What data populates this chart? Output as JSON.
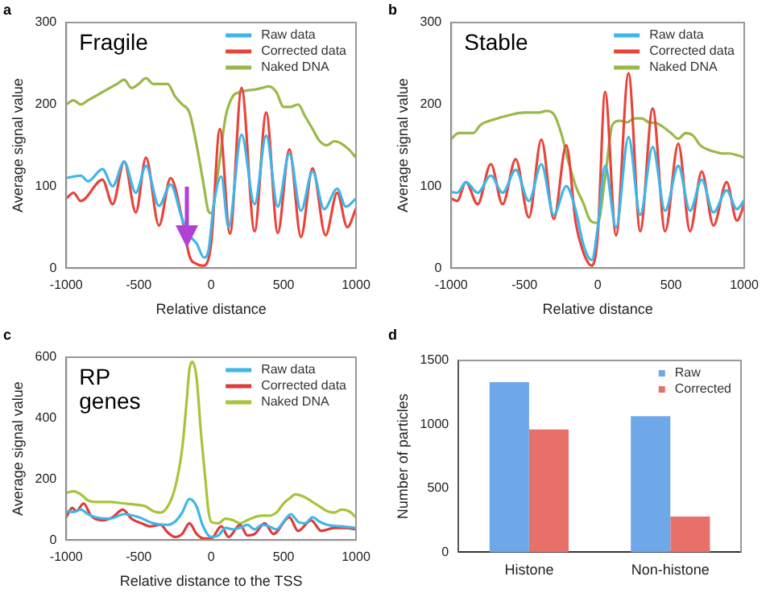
{
  "chart_data": [
    {
      "type": "line",
      "title": "Fragile",
      "xlabel": "Relative distance",
      "ylabel": "Average signal value",
      "annotations": [
        "a"
      ],
      "xlim": [
        -1000,
        1000
      ],
      "xticks": [
        -1000,
        -500,
        0,
        500,
        1000
      ],
      "ylim": [
        0,
        300
      ],
      "yticks": [
        0,
        100,
        200,
        300
      ],
      "grid": false,
      "legend": "top right",
      "marker": "none",
      "line_style": "solid",
      "series": [
        {
          "name": "Raw data",
          "color": "#3fb6e8",
          "x": [
            -1000,
            -900,
            -850,
            -750,
            -680,
            -600,
            -520,
            -450,
            -360,
            -280,
            -200,
            -150,
            -100,
            -50,
            -20,
            20,
            70,
            120,
            210,
            300,
            380,
            460,
            540,
            620,
            700,
            780,
            870,
            930,
            1000
          ],
          "values": [
            110,
            113,
            106,
            121,
            100,
            130,
            92,
            125,
            76,
            102,
            60,
            40,
            30,
            13,
            20,
            80,
            112,
            50,
            163,
            78,
            162,
            75,
            140,
            70,
            118,
            72,
            97,
            75,
            85
          ]
        },
        {
          "name": "Corrected data",
          "color": "#e8443a",
          "x": [
            -1000,
            -950,
            -900,
            -750,
            -680,
            -600,
            -520,
            -450,
            -360,
            -280,
            -200,
            -150,
            -100,
            -50,
            0,
            60,
            130,
            210,
            300,
            380,
            460,
            540,
            620,
            700,
            790,
            870,
            940,
            1000
          ],
          "values": [
            85,
            92,
            82,
            108,
            78,
            130,
            68,
            135,
            52,
            110,
            60,
            15,
            5,
            3,
            30,
            170,
            42,
            220,
            45,
            190,
            43,
            145,
            38,
            122,
            40,
            92,
            50,
            73
          ]
        },
        {
          "name": "Naked DNA",
          "color": "#9bb84a",
          "x": [
            -1000,
            -950,
            -900,
            -850,
            -800,
            -750,
            -700,
            -650,
            -600,
            -550,
            -500,
            -450,
            -400,
            -350,
            -300,
            -250,
            -200,
            -150,
            -100,
            -50,
            -20,
            0,
            50,
            100,
            150,
            200,
            250,
            300,
            350,
            400,
            450,
            500,
            550,
            600,
            650,
            700,
            750,
            800,
            850,
            900,
            950,
            1000
          ],
          "values": [
            200,
            205,
            200,
            205,
            210,
            215,
            220,
            225,
            230,
            220,
            225,
            232,
            225,
            225,
            225,
            210,
            200,
            190,
            150,
            100,
            70,
            67,
            120,
            185,
            210,
            215,
            217,
            218,
            220,
            222,
            215,
            197,
            197,
            200,
            185,
            170,
            155,
            150,
            155,
            152,
            145,
            135
          ]
        }
      ]
    },
    {
      "type": "line",
      "title": "Stable",
      "xlabel": "Relative distance",
      "ylabel": "Average signal value",
      "annotations": [
        "b"
      ],
      "xlim": [
        -1000,
        1000
      ],
      "xticks": [
        -1000,
        -500,
        0,
        500,
        1000
      ],
      "ylim": [
        0,
        300
      ],
      "yticks": [
        0,
        100,
        200,
        300
      ],
      "grid": false,
      "legend": "top right",
      "marker": "none",
      "line_style": "solid",
      "series": [
        {
          "name": "Raw data",
          "color": "#3fb6e8",
          "x": [
            -1000,
            -960,
            -900,
            -820,
            -730,
            -650,
            -560,
            -470,
            -385,
            -300,
            -215,
            -150,
            -100,
            -60,
            -40,
            0,
            50,
            125,
            210,
            290,
            375,
            460,
            550,
            630,
            710,
            790,
            880,
            950,
            1000
          ],
          "values": [
            93,
            92,
            105,
            92,
            113,
            92,
            120,
            82,
            127,
            65,
            100,
            70,
            30,
            12,
            10,
            50,
            125,
            50,
            160,
            65,
            148,
            70,
            125,
            70,
            108,
            68,
            95,
            72,
            83
          ]
        },
        {
          "name": "Corrected data",
          "color": "#e8443a",
          "x": [
            -1000,
            -960,
            -900,
            -820,
            -730,
            -650,
            -560,
            -470,
            -385,
            -300,
            -215,
            -150,
            -100,
            -60,
            -40,
            0,
            50,
            125,
            210,
            290,
            375,
            460,
            550,
            630,
            710,
            790,
            880,
            950,
            1000
          ],
          "values": [
            85,
            82,
            105,
            78,
            127,
            78,
            133,
            62,
            157,
            60,
            150,
            55,
            20,
            5,
            3,
            40,
            215,
            40,
            238,
            45,
            195,
            45,
            152,
            45,
            118,
            52,
            105,
            58,
            78
          ]
        },
        {
          "name": "Naked DNA",
          "color": "#9bb84a",
          "x": [
            -1000,
            -950,
            -850,
            -800,
            -700,
            -600,
            -500,
            -400,
            -350,
            -300,
            -250,
            -200,
            -150,
            -100,
            -50,
            0,
            50,
            100,
            150,
            200,
            250,
            300,
            350,
            400,
            450,
            500,
            550,
            600,
            650,
            700,
            750,
            800,
            850,
            900,
            950,
            1000
          ],
          "values": [
            158,
            165,
            165,
            175,
            182,
            187,
            190,
            190,
            192,
            188,
            165,
            130,
            100,
            80,
            58,
            55,
            110,
            175,
            180,
            178,
            183,
            183,
            178,
            177,
            172,
            165,
            158,
            165,
            162,
            150,
            145,
            142,
            140,
            140,
            138,
            135
          ]
        }
      ]
    },
    {
      "type": "line",
      "title": "RP genes",
      "xlabel": "Relative distance to the TSS",
      "ylabel": "Average signal value",
      "annotations": [
        "c"
      ],
      "xlim": [
        -1000,
        1000
      ],
      "xticks": [
        -1000,
        -500,
        0,
        500,
        1000
      ],
      "ylim": [
        0,
        600
      ],
      "yticks": [
        0,
        200,
        400,
        600
      ],
      "grid": false,
      "legend": "top right",
      "marker": "none",
      "line_style": "solid",
      "series": [
        {
          "name": "Raw data",
          "color": "#3fb6e8",
          "x": [
            -1000,
            -950,
            -900,
            -850,
            -800,
            -700,
            -600,
            -500,
            -400,
            -300,
            -250,
            -200,
            -150,
            -100,
            -60,
            0,
            50,
            100,
            150,
            200,
            250,
            300,
            350,
            400,
            450,
            500,
            550,
            600,
            650,
            700,
            750,
            800,
            900,
            1000
          ],
          "values": [
            95,
            92,
            100,
            85,
            75,
            70,
            85,
            75,
            55,
            50,
            60,
            90,
            135,
            110,
            50,
            10,
            15,
            40,
            35,
            40,
            50,
            35,
            50,
            45,
            35,
            60,
            85,
            60,
            55,
            75,
            60,
            50,
            45,
            40
          ]
        },
        {
          "name": "Corrected data",
          "color": "#e03a3a",
          "x": [
            -1000,
            -960,
            -930,
            -880,
            -830,
            -750,
            -680,
            -610,
            -550,
            -480,
            -420,
            -350,
            -300,
            -250,
            -200,
            -150,
            -100,
            -50,
            0,
            70,
            120,
            200,
            250,
            300,
            370,
            430,
            540,
            600,
            690,
            760,
            850,
            920,
            1000
          ],
          "values": [
            75,
            105,
            95,
            120,
            80,
            65,
            75,
            100,
            70,
            55,
            45,
            50,
            25,
            10,
            20,
            55,
            20,
            5,
            5,
            45,
            10,
            50,
            15,
            20,
            55,
            20,
            75,
            30,
            65,
            30,
            40,
            40,
            35
          ]
        },
        {
          "name": "Naked DNA",
          "color": "#a7c43a",
          "x": [
            -1000,
            -950,
            -900,
            -850,
            -800,
            -700,
            -600,
            -500,
            -450,
            -400,
            -350,
            -300,
            -250,
            -200,
            -170,
            -150,
            -130,
            -100,
            -70,
            -40,
            -20,
            0,
            50,
            100,
            150,
            200,
            250,
            300,
            350,
            400,
            450,
            500,
            550,
            580,
            650,
            700,
            750,
            800,
            850,
            900,
            950,
            1000
          ],
          "values": [
            155,
            160,
            150,
            130,
            125,
            125,
            120,
            115,
            110,
            95,
            90,
            110,
            170,
            300,
            450,
            560,
            585,
            530,
            350,
            200,
            100,
            60,
            55,
            70,
            65,
            55,
            65,
            75,
            80,
            80,
            90,
            120,
            140,
            150,
            140,
            125,
            110,
            95,
            90,
            100,
            95,
            75
          ]
        }
      ]
    },
    {
      "type": "bar",
      "ylabel": "Number of particles",
      "annotations": [
        "d"
      ],
      "categories": [
        "Histone",
        "Non-histone"
      ],
      "ylim": [
        0,
        1500
      ],
      "yticks": [
        0,
        500,
        1000,
        1500
      ],
      "grid": false,
      "legend": "top right",
      "series": [
        {
          "name": "Raw",
          "color": "#6fa8e8",
          "values": [
            1330,
            1065
          ]
        },
        {
          "name": "Corrected",
          "color": "#e8706a",
          "values": [
            960,
            280
          ]
        }
      ]
    }
  ]
}
